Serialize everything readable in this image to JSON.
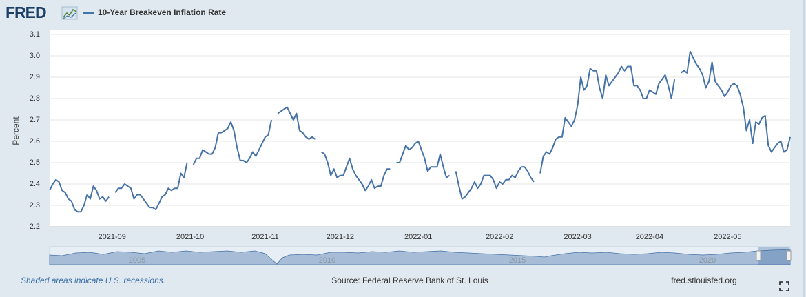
{
  "header": {
    "logo": "FRED"
  },
  "chart_data": {
    "type": "line",
    "ylabel": "Percent",
    "ylim": [
      2.2,
      3.1
    ],
    "yticks": [
      2.2,
      2.3,
      2.4,
      2.5,
      2.6,
      2.7,
      2.8,
      2.9,
      {
        "value": 3,
        "label": "3.0"
      },
      3.1
    ],
    "grid": true,
    "categories": [
      null,
      null,
      null,
      null,
      null,
      null,
      null,
      null,
      null,
      null,
      null,
      null,
      null,
      null,
      null,
      null,
      null,
      null,
      null,
      null,
      "2021-09",
      null,
      null,
      null,
      null,
      null,
      null,
      null,
      null,
      null,
      null,
      null,
      null,
      null,
      null,
      null,
      null,
      null,
      null,
      null,
      null,
      null,
      null,
      null,
      null,
      "2021-10",
      null,
      null,
      null,
      null,
      null,
      null,
      null,
      null,
      null,
      null,
      null,
      null,
      null,
      null,
      null,
      null,
      null,
      null,
      null,
      null,
      null,
      null,
      null,
      "2021-11",
      null,
      null,
      null,
      null,
      null,
      null,
      null,
      null,
      null,
      null,
      null,
      null,
      null,
      null,
      null,
      null,
      null,
      null,
      null,
      null,
      null,
      null,
      null,
      "2021-12",
      null,
      null,
      null,
      null,
      null,
      null,
      null,
      null,
      null,
      null,
      null,
      null,
      null,
      null,
      null,
      null,
      null,
      null,
      null,
      null,
      null,
      null,
      null,
      null,
      "2022-01",
      null,
      null,
      null,
      null,
      null,
      null,
      null,
      null,
      null,
      null,
      null,
      null,
      null,
      null,
      null,
      null,
      null,
      null,
      null,
      null,
      null,
      null,
      null,
      null,
      null,
      "2022-02",
      null,
      null,
      null,
      null,
      null,
      null,
      null,
      null,
      null,
      null,
      null,
      null,
      null,
      null,
      null,
      null,
      null,
      null,
      null,
      null,
      null,
      null,
      null,
      null,
      "2022-03",
      null,
      null,
      null,
      null,
      null,
      null,
      null,
      null,
      null,
      null,
      null,
      null,
      null,
      null,
      null,
      null,
      null,
      null,
      null,
      null,
      null,
      null,
      "2022-04",
      null,
      null,
      null,
      null,
      null,
      null,
      null,
      null,
      null,
      null,
      null,
      null,
      null,
      null,
      null,
      null,
      null,
      null,
      null,
      null,
      null,
      null,
      null,
      null,
      "2022-05",
      null,
      null,
      null,
      null,
      null,
      null,
      null,
      null,
      null,
      null,
      null,
      null,
      null,
      null,
      null,
      null,
      null,
      null,
      null,
      null
    ],
    "series": [
      {
        "name": "10-Year Breakeven Inflation Rate",
        "color": "#4572a7",
        "values": [
          2.37,
          2.4,
          2.42,
          2.41,
          2.37,
          2.36,
          2.33,
          2.32,
          2.28,
          2.27,
          2.27,
          2.3,
          2.35,
          2.33,
          2.39,
          2.37,
          2.33,
          2.34,
          2.32,
          2.34,
          null,
          2.36,
          2.38,
          2.38,
          2.4,
          2.39,
          2.38,
          2.33,
          2.35,
          2.35,
          2.33,
          2.31,
          2.29,
          2.29,
          2.28,
          2.31,
          2.34,
          2.35,
          2.38,
          2.37,
          2.38,
          2.38,
          2.45,
          2.43,
          2.5,
          null,
          2.49,
          2.52,
          2.52,
          2.56,
          2.55,
          2.54,
          2.54,
          2.57,
          2.64,
          2.64,
          2.65,
          2.66,
          2.69,
          2.65,
          2.57,
          2.51,
          2.51,
          2.5,
          2.52,
          2.55,
          2.53,
          2.56,
          2.59,
          2.62,
          2.63,
          2.7,
          null,
          2.73,
          2.74,
          2.75,
          2.76,
          2.73,
          2.7,
          2.73,
          2.65,
          2.64,
          2.62,
          2.61,
          2.62,
          2.61,
          null,
          2.55,
          2.54,
          2.5,
          2.44,
          2.47,
          2.43,
          2.44,
          2.44,
          2.48,
          2.52,
          2.47,
          2.44,
          2.42,
          2.4,
          2.37,
          2.39,
          2.42,
          2.38,
          2.39,
          2.39,
          2.44,
          2.47,
          2.47,
          null,
          2.5,
          2.5,
          2.54,
          2.58,
          2.56,
          2.57,
          2.59,
          2.6,
          2.56,
          2.52,
          2.46,
          2.48,
          2.48,
          2.48,
          2.54,
          2.48,
          2.43,
          2.44,
          null,
          2.46,
          2.39,
          2.33,
          2.34,
          2.36,
          2.38,
          2.41,
          2.38,
          2.4,
          2.44,
          2.44,
          2.44,
          2.42,
          2.38,
          2.41,
          2.4,
          2.42,
          2.42,
          2.44,
          2.43,
          2.46,
          2.48,
          2.48,
          2.46,
          2.43,
          2.41,
          null,
          2.45,
          2.53,
          2.55,
          2.54,
          2.57,
          2.61,
          2.62,
          2.62,
          2.71,
          2.69,
          2.67,
          2.7,
          2.77,
          2.9,
          2.84,
          2.86,
          2.94,
          2.93,
          2.93,
          2.85,
          2.8,
          2.91,
          2.86,
          2.88,
          2.9,
          2.92,
          2.95,
          2.93,
          2.95,
          2.95,
          2.86,
          2.86,
          2.84,
          2.8,
          2.8,
          2.84,
          2.83,
          2.82,
          2.87,
          2.89,
          2.91,
          2.86,
          2.8,
          2.89,
          null,
          2.92,
          2.93,
          2.92,
          3.02,
          2.99,
          2.96,
          2.94,
          2.91,
          2.85,
          2.88,
          2.97,
          2.88,
          2.86,
          2.84,
          2.81,
          2.83,
          2.86,
          2.87,
          2.86,
          2.82,
          2.76,
          2.65,
          2.7,
          2.59,
          2.69,
          2.68,
          2.71,
          2.72,
          2.58,
          2.55,
          2.57,
          2.59,
          2.6,
          2.55,
          2.56,
          2.62
        ]
      }
    ]
  },
  "navigator": {
    "labels": [
      "2005",
      "2010",
      "2015",
      "2020"
    ]
  },
  "footer": {
    "note": "Shaded areas indicate U.S. recessions.",
    "source": "Source: Federal Reserve Bank of St. Louis",
    "site": "fred.stlouisfed.org"
  }
}
